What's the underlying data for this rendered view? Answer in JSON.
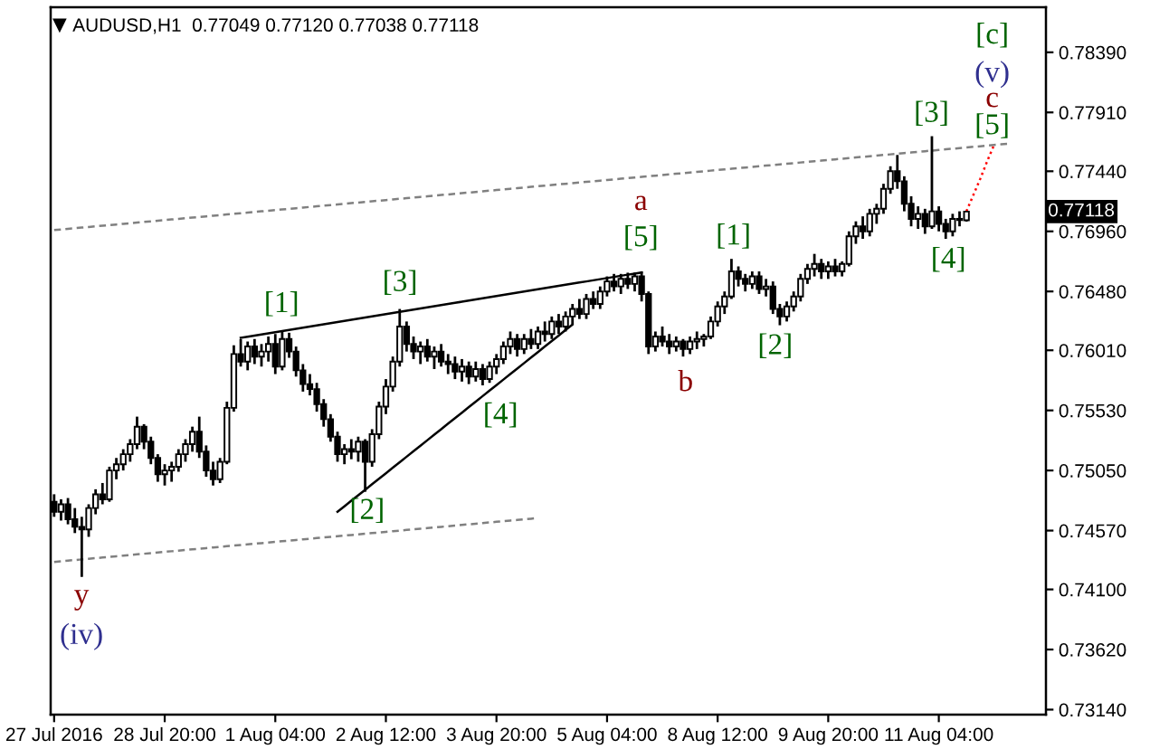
{
  "chart_data": {
    "type": "candlestick",
    "title": "AUDUSD,H1  0.77049 0.77120 0.77038 0.77118",
    "color": "#000000",
    "categories": [
      "27 Jul 2016",
      null,
      null,
      null,
      null,
      null,
      null,
      null,
      null,
      null,
      null,
      null,
      null,
      null,
      null,
      null,
      "28 Jul 20:00",
      null,
      null,
      null,
      null,
      null,
      null,
      null,
      null,
      null,
      null,
      null,
      null,
      null,
      null,
      null,
      "1 Aug 04:00",
      null,
      null,
      null,
      null,
      null,
      null,
      null,
      null,
      null,
      null,
      null,
      null,
      null,
      null,
      null,
      "2 Aug 12:00",
      null,
      null,
      null,
      null,
      null,
      null,
      null,
      null,
      null,
      null,
      null,
      null,
      null,
      null,
      null,
      "3 Aug 20:00",
      null,
      null,
      null,
      null,
      null,
      null,
      null,
      null,
      null,
      null,
      null,
      null,
      null,
      null,
      null,
      "5 Aug 04:00",
      null,
      null,
      null,
      null,
      null,
      null,
      null,
      null,
      null,
      null,
      null,
      null,
      null,
      null,
      null,
      "8 Aug 12:00",
      null,
      null,
      null,
      null,
      null,
      null,
      null,
      null,
      null,
      null,
      null,
      null,
      null,
      null,
      null,
      "9 Aug 20:00",
      null,
      null,
      null,
      null,
      null,
      null,
      null,
      null,
      null,
      null,
      null,
      null,
      null,
      null,
      null,
      "11 Aug 04:00",
      null,
      null,
      null,
      null,
      null,
      null,
      null,
      null,
      null,
      null,
      null,
      null,
      null,
      null,
      null
    ],
    "ohlc": [
      [
        0.748,
        0.7486,
        0.7468,
        0.7472
      ],
      [
        0.7472,
        0.7482,
        0.7465,
        0.7478
      ],
      [
        0.7478,
        0.7483,
        0.7462,
        0.7466
      ],
      [
        0.7466,
        0.7475,
        0.7455,
        0.746
      ],
      [
        0.746,
        0.7468,
        0.742,
        0.7458
      ],
      [
        0.7458,
        0.7478,
        0.7452,
        0.7475
      ],
      [
        0.7475,
        0.749,
        0.747,
        0.7486
      ],
      [
        0.7486,
        0.7495,
        0.7478,
        0.7482
      ],
      [
        0.7482,
        0.7508,
        0.748,
        0.7505
      ],
      [
        0.7505,
        0.7515,
        0.7498,
        0.751
      ],
      [
        0.751,
        0.7522,
        0.7505,
        0.7518
      ],
      [
        0.7518,
        0.753,
        0.7512,
        0.7526
      ],
      [
        0.7526,
        0.7548,
        0.7522,
        0.754
      ],
      [
        0.754,
        0.7542,
        0.7522,
        0.7528
      ],
      [
        0.7528,
        0.7532,
        0.751,
        0.7515
      ],
      [
        0.7515,
        0.7518,
        0.7496,
        0.7502
      ],
      [
        0.7502,
        0.751,
        0.7493,
        0.7505
      ],
      [
        0.7505,
        0.7512,
        0.7496,
        0.7508
      ],
      [
        0.7508,
        0.7522,
        0.7504,
        0.7518
      ],
      [
        0.7518,
        0.753,
        0.7512,
        0.7526
      ],
      [
        0.7526,
        0.754,
        0.752,
        0.7536
      ],
      [
        0.7536,
        0.7548,
        0.7515,
        0.752
      ],
      [
        0.752,
        0.7525,
        0.75,
        0.7505
      ],
      [
        0.7505,
        0.7512,
        0.7493,
        0.7498
      ],
      [
        0.7498,
        0.7515,
        0.7495,
        0.7512
      ],
      [
        0.7512,
        0.756,
        0.751,
        0.7555
      ],
      [
        0.7555,
        0.7605,
        0.7552,
        0.7598
      ],
      [
        0.7598,
        0.761,
        0.7588,
        0.7592
      ],
      [
        0.7592,
        0.7608,
        0.7585,
        0.7604
      ],
      [
        0.7604,
        0.761,
        0.759,
        0.7596
      ],
      [
        0.7596,
        0.7606,
        0.7588,
        0.76
      ],
      [
        0.76,
        0.7612,
        0.7592,
        0.7606
      ],
      [
        0.7606,
        0.7614,
        0.7582,
        0.7588
      ],
      [
        0.7588,
        0.7617,
        0.7585,
        0.761
      ],
      [
        0.761,
        0.7615,
        0.7595,
        0.76
      ],
      [
        0.76,
        0.7604,
        0.758,
        0.7585
      ],
      [
        0.7585,
        0.759,
        0.7568,
        0.7574
      ],
      [
        0.7574,
        0.7582,
        0.7565,
        0.757
      ],
      [
        0.757,
        0.7575,
        0.7552,
        0.7558
      ],
      [
        0.7558,
        0.7562,
        0.754,
        0.7546
      ],
      [
        0.7546,
        0.755,
        0.7528,
        0.7532
      ],
      [
        0.7532,
        0.7536,
        0.7512,
        0.7518
      ],
      [
        0.7518,
        0.7526,
        0.751,
        0.7522
      ],
      [
        0.7522,
        0.753,
        0.7514,
        0.752
      ],
      [
        0.752,
        0.7532,
        0.7512,
        0.7528
      ],
      [
        0.7528,
        0.753,
        0.7488,
        0.7512
      ],
      [
        0.7512,
        0.7538,
        0.7508,
        0.7534
      ],
      [
        0.7534,
        0.756,
        0.753,
        0.7556
      ],
      [
        0.7556,
        0.7578,
        0.755,
        0.7572
      ],
      [
        0.7572,
        0.7596,
        0.7568,
        0.7592
      ],
      [
        0.7592,
        0.7634,
        0.7588,
        0.762
      ],
      [
        0.762,
        0.7624,
        0.76,
        0.7606
      ],
      [
        0.7606,
        0.7612,
        0.7594,
        0.76
      ],
      [
        0.76,
        0.7608,
        0.759,
        0.7604
      ],
      [
        0.7604,
        0.761,
        0.7592,
        0.7596
      ],
      [
        0.7596,
        0.7604,
        0.7586,
        0.76
      ],
      [
        0.76,
        0.7606,
        0.7588,
        0.7592
      ],
      [
        0.7592,
        0.7598,
        0.7582,
        0.759
      ],
      [
        0.759,
        0.7596,
        0.7578,
        0.7584
      ],
      [
        0.7584,
        0.7594,
        0.7576,
        0.7588
      ],
      [
        0.7588,
        0.7592,
        0.7574,
        0.758
      ],
      [
        0.758,
        0.7592,
        0.7576,
        0.7586
      ],
      [
        0.7586,
        0.759,
        0.7573,
        0.7578
      ],
      [
        0.7578,
        0.7592,
        0.7575,
        0.7588
      ],
      [
        0.7588,
        0.7598,
        0.7582,
        0.7594
      ],
      [
        0.7594,
        0.7608,
        0.759,
        0.7604
      ],
      [
        0.7604,
        0.7616,
        0.7598,
        0.761
      ],
      [
        0.761,
        0.7614,
        0.7596,
        0.7602
      ],
      [
        0.7602,
        0.7614,
        0.7598,
        0.761
      ],
      [
        0.761,
        0.7618,
        0.7602,
        0.7606
      ],
      [
        0.7606,
        0.762,
        0.7602,
        0.7616
      ],
      [
        0.7616,
        0.7624,
        0.7608,
        0.7614
      ],
      [
        0.7614,
        0.7628,
        0.761,
        0.7624
      ],
      [
        0.7624,
        0.763,
        0.7614,
        0.762
      ],
      [
        0.762,
        0.7632,
        0.7616,
        0.7628
      ],
      [
        0.7628,
        0.7638,
        0.7622,
        0.7634
      ],
      [
        0.7634,
        0.7642,
        0.7626,
        0.763
      ],
      [
        0.763,
        0.7646,
        0.7626,
        0.7642
      ],
      [
        0.7642,
        0.7648,
        0.7634,
        0.7638
      ],
      [
        0.7638,
        0.7652,
        0.7634,
        0.7648
      ],
      [
        0.7648,
        0.766,
        0.7644,
        0.7656
      ],
      [
        0.7656,
        0.7662,
        0.7648,
        0.7652
      ],
      [
        0.7652,
        0.7662,
        0.7646,
        0.7658
      ],
      [
        0.7658,
        0.7663,
        0.765,
        0.7654
      ],
      [
        0.7654,
        0.7663,
        0.7648,
        0.766
      ],
      [
        0.766,
        0.7664,
        0.764,
        0.7646
      ],
      [
        0.7646,
        0.7648,
        0.7598,
        0.7604
      ],
      [
        0.7604,
        0.7616,
        0.76,
        0.7612
      ],
      [
        0.7612,
        0.762,
        0.7604,
        0.7608
      ],
      [
        0.7608,
        0.7614,
        0.7598,
        0.7604
      ],
      [
        0.7604,
        0.7612,
        0.76,
        0.7608
      ],
      [
        0.7608,
        0.761,
        0.7596,
        0.7602
      ],
      [
        0.7602,
        0.7612,
        0.7598,
        0.7608
      ],
      [
        0.7608,
        0.7616,
        0.7602,
        0.761
      ],
      [
        0.761,
        0.7614,
        0.7604,
        0.7612
      ],
      [
        0.7612,
        0.7628,
        0.761,
        0.7624
      ],
      [
        0.7624,
        0.764,
        0.762,
        0.7636
      ],
      [
        0.7636,
        0.7648,
        0.763,
        0.7644
      ],
      [
        0.7644,
        0.7674,
        0.7642,
        0.7664
      ],
      [
        0.7664,
        0.7668,
        0.7652,
        0.7658
      ],
      [
        0.7658,
        0.7662,
        0.7648,
        0.7654
      ],
      [
        0.7654,
        0.7664,
        0.765,
        0.766
      ],
      [
        0.766,
        0.7664,
        0.7646,
        0.765
      ],
      [
        0.765,
        0.7658,
        0.7644,
        0.7652
      ],
      [
        0.7652,
        0.7656,
        0.763,
        0.7634
      ],
      [
        0.7634,
        0.7638,
        0.7621,
        0.7628
      ],
      [
        0.7628,
        0.764,
        0.7624,
        0.7636
      ],
      [
        0.7636,
        0.7648,
        0.7632,
        0.7644
      ],
      [
        0.7644,
        0.7662,
        0.764,
        0.7658
      ],
      [
        0.7658,
        0.767,
        0.7654,
        0.7666
      ],
      [
        0.7666,
        0.7678,
        0.766,
        0.767
      ],
      [
        0.767,
        0.7674,
        0.7658,
        0.7664
      ],
      [
        0.7664,
        0.7672,
        0.7658,
        0.7668
      ],
      [
        0.7668,
        0.7674,
        0.766,
        0.7664
      ],
      [
        0.7664,
        0.7672,
        0.766,
        0.767
      ],
      [
        0.767,
        0.7696,
        0.7668,
        0.7692
      ],
      [
        0.7692,
        0.7704,
        0.7686,
        0.77
      ],
      [
        0.77,
        0.7708,
        0.769,
        0.7696
      ],
      [
        0.7696,
        0.7714,
        0.7692,
        0.771
      ],
      [
        0.771,
        0.7718,
        0.7702,
        0.7714
      ],
      [
        0.7714,
        0.7734,
        0.771,
        0.773
      ],
      [
        0.773,
        0.7748,
        0.7726,
        0.7744
      ],
      [
        0.7744,
        0.7757,
        0.773,
        0.7736
      ],
      [
        0.7736,
        0.774,
        0.7712,
        0.7718
      ],
      [
        0.7718,
        0.7724,
        0.77,
        0.7706
      ],
      [
        0.7706,
        0.7716,
        0.7698,
        0.771
      ],
      [
        0.771,
        0.7714,
        0.7694,
        0.77
      ],
      [
        0.77,
        0.7772,
        0.7698,
        0.7712
      ],
      [
        0.7712,
        0.7716,
        0.7696,
        0.7702
      ],
      [
        0.7702,
        0.7706,
        0.769,
        0.7696
      ],
      [
        0.7696,
        0.771,
        0.7692,
        0.7706
      ],
      [
        0.7706,
        0.7712,
        0.77,
        0.7705
      ],
      [
        0.77049,
        0.7712,
        0.77038,
        0.77118
      ],
      null,
      null,
      null,
      null,
      null,
      null,
      null,
      null,
      null,
      null,
      null
    ],
    "series": [
      {
        "type": "line",
        "color": "#808080",
        "line_style": "dashed",
        "values": [
          0.7697,
          0.76975,
          0.7698,
          0.76985,
          0.7699,
          0.76995,
          0.77,
          0.77005,
          0.7701,
          0.77015,
          0.7702,
          0.77025,
          0.7703,
          0.77035,
          0.7704,
          0.77045,
          0.7705,
          0.77055,
          0.7706,
          0.77065,
          0.7707,
          0.77075,
          0.7708,
          0.77085,
          0.7709,
          0.77095,
          0.771,
          0.77105,
          0.7711,
          0.77115,
          0.7712,
          0.77125,
          0.7713,
          0.77135,
          0.7714,
          0.77145,
          0.7715,
          0.77155,
          0.7716,
          0.77165,
          0.7717,
          0.77175,
          0.7718,
          0.77185,
          0.7719,
          0.77195,
          0.772,
          0.77205,
          0.7721,
          0.77215,
          0.7722,
          0.77225,
          0.7723,
          0.77235,
          0.7724,
          0.77245,
          0.7725,
          0.77255,
          0.7726,
          0.77265,
          0.7727,
          0.77275,
          0.7728,
          0.77285,
          0.7729,
          0.77295,
          0.773,
          0.77305,
          0.7731,
          0.77315,
          0.7732,
          0.77325,
          0.7733,
          0.77335,
          0.7734,
          0.77345,
          0.7735,
          0.77355,
          0.7736,
          0.77365,
          0.7737,
          0.77375,
          0.7738,
          0.77385,
          0.7739,
          0.77395,
          0.774,
          0.77405,
          0.7741,
          0.77415,
          0.7742,
          0.77425,
          0.7743,
          0.77435,
          0.7744,
          0.77445,
          0.7745,
          0.77455,
          0.7746,
          0.77465,
          0.7747,
          0.77475,
          0.7748,
          0.77485,
          0.7749,
          0.77495,
          0.775,
          0.77505,
          0.7751,
          0.77515,
          0.7752,
          0.77525,
          0.7753,
          0.77535,
          0.7754,
          0.77545,
          0.7755,
          0.77555,
          0.7756,
          0.77565,
          0.7757,
          0.77575,
          0.7758,
          0.77585,
          0.7759,
          0.77595,
          0.776,
          0.77605,
          0.7761,
          0.77615,
          0.7762,
          0.77625,
          0.7763,
          0.77635,
          0.7764,
          0.77645,
          0.7765,
          0.77655,
          0.7766,
          null,
          null,
          null,
          null,
          null
        ]
      },
      {
        "type": "line",
        "color": "#808080",
        "line_style": "dashed",
        "values": [
          0.7432,
          0.74325,
          0.7433,
          0.74335,
          0.7434,
          0.74345,
          0.7435,
          0.74355,
          0.7436,
          0.74365,
          0.7437,
          0.74375,
          0.7438,
          0.74385,
          0.7439,
          0.74395,
          0.744,
          0.74405,
          0.7441,
          0.74415,
          0.7442,
          0.74425,
          0.7443,
          0.74435,
          0.7444,
          0.74445,
          0.7445,
          0.74455,
          0.7446,
          0.74465,
          0.7447,
          0.74475,
          0.7448,
          0.74485,
          0.7449,
          0.74495,
          0.745,
          0.74505,
          0.7451,
          0.74515,
          0.7452,
          0.74525,
          0.7453,
          0.74535,
          0.7454,
          0.74545,
          0.7455,
          0.74555,
          0.7456,
          0.74565,
          0.7457,
          0.74575,
          0.7458,
          0.74585,
          0.7459,
          0.74595,
          0.746,
          0.74605,
          0.7461,
          0.74615,
          0.7462,
          0.74625,
          0.7463,
          0.74635,
          0.7464,
          0.74645,
          0.7465,
          0.74655,
          0.7466,
          0.74665,
          0.7467,
          null,
          null,
          null,
          null,
          null,
          null,
          null,
          null,
          null,
          null,
          null,
          null,
          null,
          null,
          null,
          null,
          null,
          null,
          null,
          null,
          null,
          null,
          null,
          null,
          null,
          null,
          null,
          null,
          null,
          null,
          null,
          null,
          null,
          null,
          null,
          null,
          null,
          null,
          null,
          null,
          null,
          null,
          null,
          null,
          null,
          null,
          null,
          null,
          null,
          null,
          null,
          null,
          null,
          null,
          null,
          null,
          null,
          null,
          null,
          null,
          null,
          null,
          null,
          null,
          null,
          null,
          null,
          null,
          null,
          null,
          null,
          null,
          null
        ]
      },
      {
        "type": "line",
        "color": "#000000",
        "line_style": "solid",
        "values": [
          null,
          null,
          null,
          null,
          null,
          null,
          null,
          null,
          null,
          null,
          null,
          null,
          null,
          null,
          null,
          null,
          null,
          null,
          null,
          null,
          null,
          null,
          null,
          null,
          null,
          null,
          null,
          0.7611,
          0.76119,
          0.76128,
          0.76137,
          0.76146,
          0.76155,
          0.76164,
          0.76173,
          0.76182,
          0.76191,
          0.762,
          0.76209,
          0.76218,
          0.76227,
          0.76236,
          0.76245,
          0.76254,
          0.76263,
          0.76272,
          0.76281,
          0.7629,
          0.76299,
          0.76308,
          0.76317,
          0.76326,
          0.76335,
          0.76344,
          0.76353,
          0.76362,
          0.76371,
          0.7638,
          0.76389,
          0.76398,
          0.76407,
          0.76416,
          0.76425,
          0.76434,
          0.76443,
          0.76452,
          0.76461,
          0.7647,
          0.76479,
          0.76488,
          0.76497,
          0.76506,
          0.76515,
          0.76524,
          0.76533,
          0.76542,
          0.76551,
          0.7656,
          0.76569,
          0.76578,
          0.76587,
          0.76596,
          0.76605,
          0.76614,
          0.76623,
          0.76632,
          null,
          null,
          null,
          null,
          null,
          null,
          null,
          null,
          null,
          null,
          null,
          null,
          null,
          null,
          null,
          null,
          null,
          null,
          null,
          null,
          null,
          null,
          null,
          null,
          null,
          null,
          null,
          null,
          null,
          null,
          null,
          null,
          null,
          null,
          null,
          null,
          null,
          null,
          null,
          null,
          null,
          null,
          null,
          null,
          null,
          null,
          null,
          null,
          null,
          null,
          null,
          null,
          null,
          null,
          null,
          null,
          null,
          null
        ]
      },
      {
        "type": "line",
        "color": "#000000",
        "line_style": "solid",
        "values": [
          null,
          null,
          null,
          null,
          null,
          null,
          null,
          null,
          null,
          null,
          null,
          null,
          null,
          null,
          null,
          null,
          null,
          null,
          null,
          null,
          null,
          null,
          null,
          null,
          null,
          null,
          null,
          null,
          null,
          null,
          null,
          null,
          null,
          null,
          null,
          null,
          null,
          null,
          null,
          null,
          null,
          0.7472,
          0.74764,
          0.74808,
          0.74852,
          0.74896,
          0.7494,
          0.74984,
          0.75028,
          0.75072,
          0.75116,
          0.7516,
          0.75204,
          0.75248,
          0.75292,
          0.75336,
          0.7538,
          0.75424,
          0.75468,
          0.75512,
          0.75556,
          0.756,
          0.75644,
          0.75688,
          0.75732,
          0.75776,
          0.7582,
          0.75864,
          0.75908,
          0.75952,
          0.75996,
          0.7604,
          0.76084,
          0.76128,
          0.76172,
          0.76216,
          null,
          null,
          null,
          null,
          null,
          null,
          null,
          null,
          null,
          null,
          null,
          null,
          null,
          null,
          null,
          null,
          null,
          null,
          null,
          null,
          null,
          null,
          null,
          null,
          null,
          null,
          null,
          null,
          null,
          null,
          null,
          null,
          null,
          null,
          null,
          null,
          null,
          null,
          null,
          null,
          null,
          null,
          null,
          null,
          null,
          null,
          null,
          null,
          null,
          null,
          null,
          null,
          null,
          null,
          null,
          null,
          null,
          null,
          null,
          null,
          null,
          null,
          null,
          null,
          null,
          null,
          null,
          null
        ]
      },
      {
        "type": "line",
        "color": "#ff0000",
        "line_style": "dotted",
        "values": [
          null,
          null,
          null,
          null,
          null,
          null,
          null,
          null,
          null,
          null,
          null,
          null,
          null,
          null,
          null,
          null,
          null,
          null,
          null,
          null,
          null,
          null,
          null,
          null,
          null,
          null,
          null,
          null,
          null,
          null,
          null,
          null,
          null,
          null,
          null,
          null,
          null,
          null,
          null,
          null,
          null,
          null,
          null,
          null,
          null,
          null,
          null,
          null,
          null,
          null,
          null,
          null,
          null,
          null,
          null,
          null,
          null,
          null,
          null,
          null,
          null,
          null,
          null,
          null,
          null,
          null,
          null,
          null,
          null,
          null,
          null,
          null,
          null,
          null,
          null,
          null,
          null,
          null,
          null,
          null,
          null,
          null,
          null,
          null,
          null,
          null,
          null,
          null,
          null,
          null,
          null,
          null,
          null,
          null,
          null,
          null,
          null,
          null,
          null,
          null,
          null,
          null,
          null,
          null,
          null,
          null,
          null,
          null,
          null,
          null,
          null,
          null,
          null,
          null,
          null,
          null,
          null,
          null,
          null,
          null,
          null,
          null,
          null,
          null,
          null,
          null,
          null,
          null,
          null,
          null,
          null,
          null,
          0.7712,
          0.7725,
          0.7738,
          0.7752,
          0.7765,
          null,
          null,
          null,
          null,
          null,
          null,
          null
        ]
      }
    ],
    "ylim": [
      0.731,
      0.7875
    ],
    "yticks": [
      {
        "value": 0.7839,
        "label": "0.78390"
      },
      {
        "value": 0.7791,
        "label": "0.77910"
      },
      {
        "value": 0.7744,
        "label": "0.77440"
      },
      {
        "value": 0.7696,
        "label": "0.76960"
      },
      {
        "value": 0.7648,
        "label": "0.76480"
      },
      {
        "value": 0.7601,
        "label": "0.76010"
      },
      {
        "value": 0.7553,
        "label": "0.75530"
      },
      {
        "value": 0.7505,
        "label": "0.75050"
      },
      {
        "value": 0.7457,
        "label": "0.74570"
      },
      {
        "value": 0.741,
        "label": "0.74100"
      },
      {
        "value": 0.7362,
        "label": "0.73620"
      },
      {
        "value": 0.7314,
        "label": "0.73140"
      }
    ],
    "annotations": [
      {
        "text": "[1]",
        "y": 0.7617
      },
      {
        "text": "[2]",
        "y": 0.7488
      },
      {
        "text": "[3]",
        "y": 0.7634
      },
      {
        "text": "[4]",
        "y": 0.7573
      },
      {
        "text": "[5]",
        "y": 0.7664
      },
      {
        "text": "a",
        "y": 0.7664
      },
      {
        "text": "b",
        "y": 0.7596
      },
      {
        "text": "[1]",
        "y": 0.7674
      },
      {
        "text": "[2]",
        "y": 0.7621
      },
      {
        "text": "[3]",
        "y": 0.7772
      },
      {
        "text": "[4]",
        "y": 0.769
      },
      {
        "text": "[5]",
        "y": 0.7765
      },
      {
        "text": "c",
        "y": 0.7765
      },
      {
        "text": "(v)",
        "y": 0.7765
      },
      "[c]",
      {
        "text": "y",
        "y": 0.742
      },
      {
        "text": "(iv)",
        "y": 0.742
      },
      "0.77118"
    ]
  }
}
